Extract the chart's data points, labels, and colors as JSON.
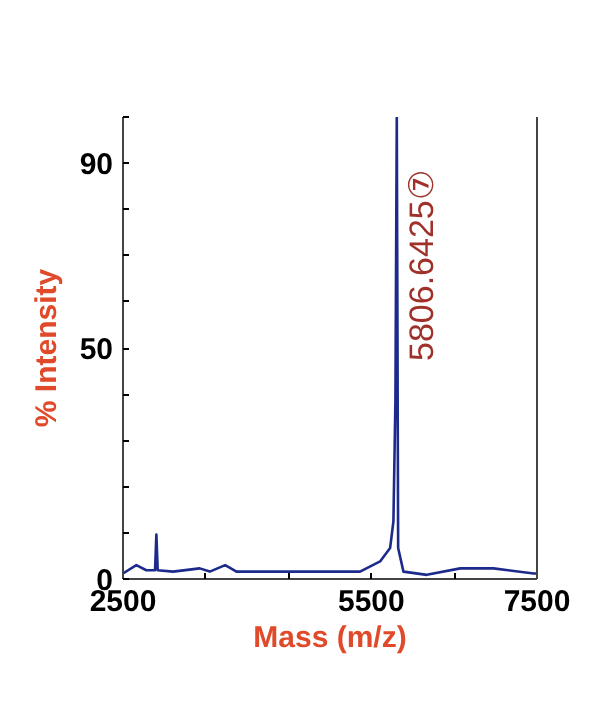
{
  "chart_data": {
    "type": "line",
    "xlabel": "Mass (m/z)",
    "ylabel": "% Intensity",
    "x": [
      2500,
      2661,
      2782,
      2887,
      2903,
      2919,
      3105,
      3427,
      3548,
      3734,
      3871,
      4637,
      5363,
      5605,
      5726,
      5766,
      5790,
      5806.6425,
      5823,
      5887,
      6169,
      6573,
      6976,
      7460,
      7500
    ],
    "series": [
      {
        "color": "#1c2a8c",
        "values": [
          1.2,
          3.0,
          1.9,
          1.9,
          9.6,
          1.9,
          1.6,
          2.3,
          1.6,
          3.0,
          1.6,
          1.6,
          1.6,
          3.8,
          6.7,
          12.5,
          38.6,
          100,
          6.7,
          1.6,
          0.9,
          2.3,
          2.3,
          1.2,
          1.2
        ]
      }
    ],
    "xlim": [
      2500,
      7500
    ],
    "xticks": [
      2500,
      {
        "value": 3500,
        "label": null
      },
      {
        "value": 4500,
        "label": null
      },
      5500,
      {
        "value": 6500,
        "label": null
      },
      7500
    ],
    "ylim": [
      0,
      100
    ],
    "yticks": [
      0,
      {
        "value": 10,
        "label": null
      },
      {
        "value": 20,
        "label": null
      },
      {
        "value": 30,
        "label": null
      },
      {
        "value": 40,
        "label": null
      },
      50,
      {
        "value": 60,
        "label": null
      },
      {
        "value": 70,
        "label": null
      },
      {
        "value": 80,
        "label": null
      },
      90,
      {
        "value": 100,
        "label": null
      }
    ],
    "annotations": [
      {
        "text": "5806.6425⑦",
        "x": 5806.6425,
        "y": 100
      }
    ],
    "grid": false,
    "marker": "none",
    "line_style": "solid"
  }
}
